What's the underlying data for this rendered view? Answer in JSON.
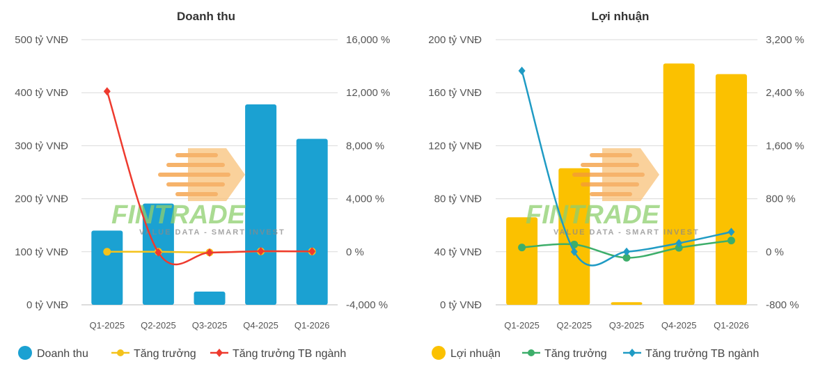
{
  "watermark": {
    "brand": "FINTRADE",
    "slogan": "VALUE DATA - SMART INVEST"
  },
  "chart_data": [
    {
      "type": "bar",
      "title": "Doanh thu",
      "categories": [
        "Q1-2025",
        "Q2-2025",
        "Q3-2025",
        "Q4-2025",
        "Q1-2026"
      ],
      "ylim": [
        0,
        500
      ],
      "y_ticks": [
        "0 tỷ VNĐ",
        "100 tỷ VNĐ",
        "200 tỷ VNĐ",
        "300 tỷ VNĐ",
        "400 tỷ VNĐ",
        "500 tỷ VNĐ"
      ],
      "y2lim": [
        -4000,
        16000
      ],
      "y2_ticks": [
        "-4,000 %",
        "0 %",
        "4,000 %",
        "8,000 %",
        "12,000 %",
        "16,000 %"
      ],
      "grid": true,
      "legend_position": "bottom",
      "series": [
        {
          "name": "Doanh thu",
          "kind": "bar",
          "axis": "left",
          "color": "#1ba1d2",
          "values": [
            140,
            191,
            25,
            378,
            313
          ]
        },
        {
          "name": "Tăng trưởng",
          "kind": "line",
          "axis": "right",
          "color": "#f4c21a",
          "values": [
            0,
            0,
            -50,
            30,
            20
          ]
        },
        {
          "name": "Tăng trưởng TB ngành",
          "kind": "line",
          "axis": "right",
          "color": "#ee3a2e",
          "values": [
            12100,
            -50,
            -60,
            40,
            30
          ]
        }
      ]
    },
    {
      "type": "bar",
      "title": "Lợi nhuận",
      "categories": [
        "Q1-2025",
        "Q2-2025",
        "Q3-2025",
        "Q4-2025",
        "Q1-2026"
      ],
      "ylim": [
        0,
        200
      ],
      "y_ticks": [
        "0 tỷ VNĐ",
        "40 tỷ VNĐ",
        "80 tỷ VNĐ",
        "120 tỷ VNĐ",
        "160 tỷ VNĐ",
        "200 tỷ VNĐ"
      ],
      "y2lim": [
        -800,
        3200
      ],
      "y2_ticks": [
        "-800 %",
        "0 %",
        "800 %",
        "1,600 %",
        "2,400 %",
        "3,200 %"
      ],
      "grid": true,
      "legend_position": "bottom",
      "series": [
        {
          "name": "Lợi nhuận",
          "kind": "bar",
          "axis": "left",
          "color": "#fbc100",
          "values": [
            66,
            103,
            2,
            182,
            174
          ]
        },
        {
          "name": "Tăng trưởng",
          "kind": "line",
          "axis": "right",
          "color": "#3dae6a",
          "values": [
            65,
            110,
            -90,
            60,
            170
          ]
        },
        {
          "name": "Tăng trưởng TB ngành",
          "kind": "line",
          "axis": "right",
          "color": "#1f9bc4",
          "values": [
            2730,
            0,
            0,
            130,
            300
          ]
        }
      ]
    }
  ]
}
